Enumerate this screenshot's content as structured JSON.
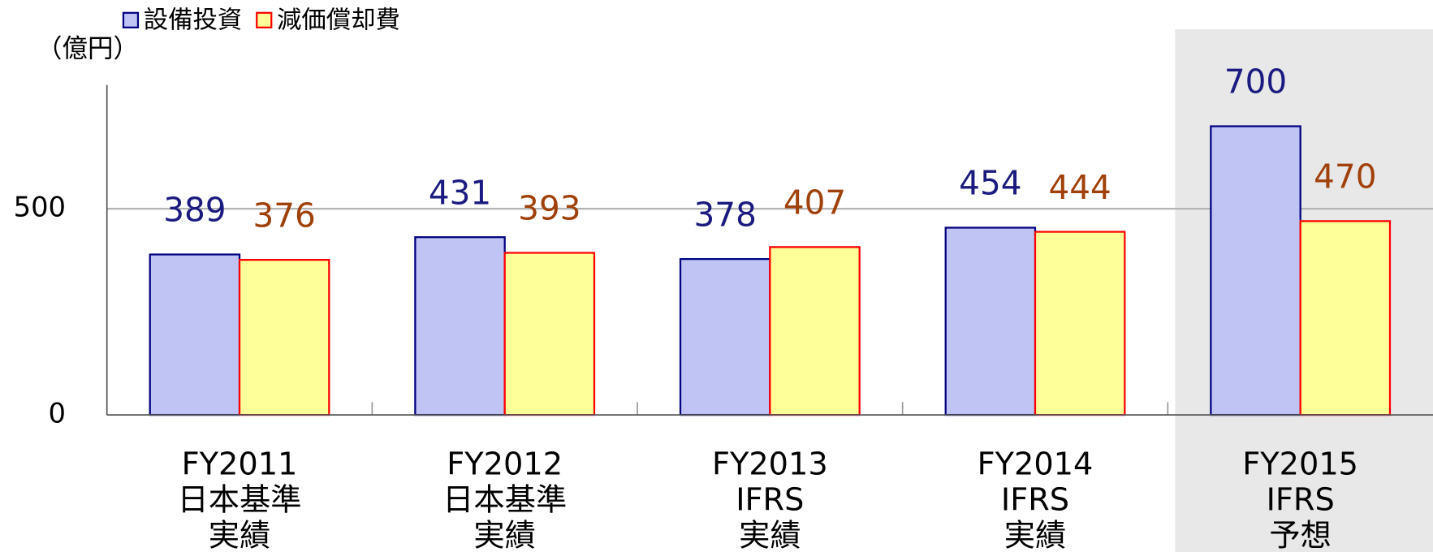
{
  "chart_data": {
    "type": "bar",
    "unit_label": "（億円）",
    "categories": [
      [
        "FY2011",
        "日本基準",
        "実績"
      ],
      [
        "FY2012",
        "日本基準",
        "実績"
      ],
      [
        "FY2013",
        "IFRS",
        "実績"
      ],
      [
        "FY2014",
        "IFRS",
        "実績"
      ],
      [
        "FY2015",
        "IFRS",
        "予想"
      ]
    ],
    "series": [
      {
        "name": "設備投資",
        "color": "#c0c4f4",
        "edge_color": "#000080",
        "label_color": "#1a1a80",
        "values": [
          389,
          431,
          378,
          454,
          700
        ]
      },
      {
        "name": "減価償却費",
        "color": "#ffff99",
        "edge_color": "#ff0000",
        "label_color": "#a0400a",
        "values": [
          376,
          393,
          407,
          444,
          470
        ]
      }
    ],
    "ylim": [
      0,
      800
    ],
    "yticks": [
      0,
      500
    ],
    "grid": true,
    "legend": "top",
    "shaded_category": 4,
    "shade_color": "#e8e8e8"
  }
}
